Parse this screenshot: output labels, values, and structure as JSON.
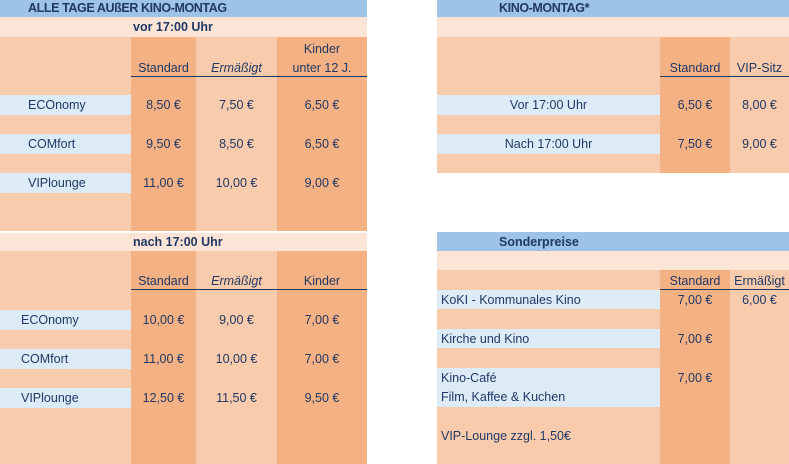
{
  "colors": {
    "header": "#9dc3e6",
    "light": "#fce4d6",
    "peach": "#f8cbad",
    "column": "#f4b183",
    "row": "#ddebf7",
    "text": "#203864"
  },
  "regular": {
    "title": "ALLE TAGE AUßER KINO-MONTAG",
    "before": {
      "subtitle": "vor 17:00 Uhr",
      "headers": [
        "Standard",
        "Ermäßigt",
        "Kinder",
        "unter 12 J."
      ],
      "rows": [
        {
          "label": "ECOnomy",
          "values": [
            "8,50 €",
            "7,50 €",
            "6,50 €"
          ]
        },
        {
          "label": "COMfort",
          "values": [
            "9,50 €",
            "8,50 €",
            "6,50 €"
          ]
        },
        {
          "label": "VIPlounge",
          "values": [
            "11,00 €",
            "10,00 €",
            "9,00 €"
          ]
        }
      ]
    },
    "after": {
      "subtitle": "nach 17:00 Uhr",
      "headers": [
        "Standard",
        "Ermäßigt",
        "Kinder"
      ],
      "rows": [
        {
          "label": "ECOnomy",
          "values": [
            "10,00 €",
            "9,00 €",
            "7,00 €"
          ]
        },
        {
          "label": "COMfort",
          "values": [
            "11,00 €",
            "10,00 €",
            "7,00 €"
          ]
        },
        {
          "label": "VIPlounge",
          "values": [
            "12,50 €",
            "11,50 €",
            "9,50 €"
          ]
        }
      ]
    }
  },
  "monday": {
    "title": "KINO-MONTAG*",
    "headers": [
      "Standard",
      "VIP-Sitz"
    ],
    "rows": [
      {
        "label": "Vor 17:00 Uhr",
        "values": [
          "6,50 €",
          "8,00 €"
        ]
      },
      {
        "label": "Nach 17:00 Uhr",
        "values": [
          "7,50 €",
          "9,00 €"
        ]
      }
    ]
  },
  "special": {
    "title": "Sonderpreise",
    "headers": [
      "Standard",
      "Ermäßigt"
    ],
    "rows": [
      {
        "label": "KoKI - Kommunales Kino",
        "values": [
          "7,00 €",
          "6,00 €"
        ]
      },
      {
        "label": "Kirche und Kino",
        "values": [
          "7,00 €"
        ]
      },
      {
        "label": "Kino-Café",
        "label2": "Film, Kaffee & Kuchen",
        "values": [
          "7,00 €"
        ]
      }
    ],
    "note": "VIP-Lounge zzgl. 1,50€"
  }
}
